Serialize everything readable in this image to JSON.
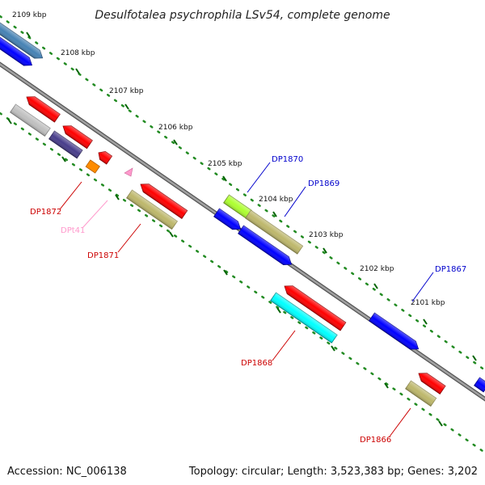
{
  "title": "Desulfotalea psychrophila LSv54, complete genome",
  "footer": {
    "accession": "Accession: NC_006138",
    "summary": "Topology: circular; Length: 3,523,383 bp; Genes: 3,202"
  },
  "ruler": {
    "labels": [
      "2109 kbp",
      "2108 kbp",
      "2107 kbp",
      "2106 kbp",
      "2105 kbp",
      "2104 kbp",
      "2103 kbp",
      "2102 kbp",
      "2101 kbp"
    ]
  },
  "gene_labels": [
    {
      "text": "DP1870",
      "color": "#0000cc"
    },
    {
      "text": "DP1869",
      "color": "#0000cc"
    },
    {
      "text": "DP1867",
      "color": "#0000cc"
    },
    {
      "text": "DP1872",
      "color": "#cc0000"
    },
    {
      "text": "DPt41",
      "color": "#ff99cc"
    },
    {
      "text": "DP1871",
      "color": "#cc0000"
    },
    {
      "text": "DP1868",
      "color": "#cc0000"
    },
    {
      "text": "DP1866",
      "color": "#cc0000"
    }
  ],
  "colors": {
    "backbone": "#808080",
    "dots": "#228b22",
    "red": "#ff0000",
    "blue": "#0000ff",
    "olive": "#bdb76b",
    "cyan": "#00ffff",
    "steelblue": "#4682b4",
    "silver": "#c0c0c0",
    "darkslate": "#483d8b",
    "orange": "#ff8c00",
    "lime": "#adff2f",
    "pink": "#ff99cc"
  }
}
